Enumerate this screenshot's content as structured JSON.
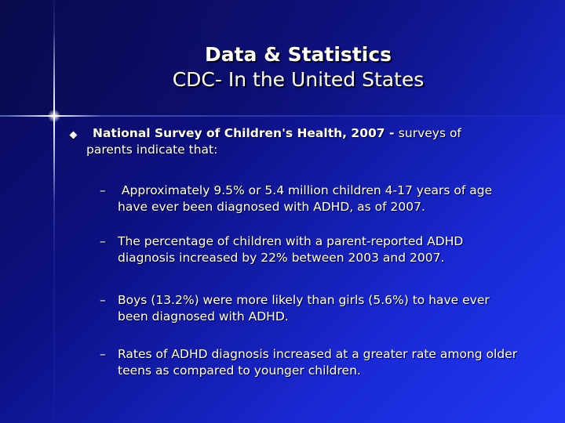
{
  "slide": {
    "title_line1": "Data & Statistics",
    "title_line2": "CDC- In the United States",
    "main_bullet": {
      "bold_text": "National Survey of Children's Health, 2007 - ",
      "text_line1": "surveys of",
      "text_line2": "parents indicate that:",
      "icon": "diamond-bullet-icon"
    },
    "sub_bullets": [
      {
        "dash": "–",
        "line1": " Approximately 9.5% or 5.4 million children 4-17 years of age",
        "line2": "have ever been diagnosed with ADHD, as of 2007."
      },
      {
        "dash": "–",
        "line1": "The percentage of children with a parent-reported ADHD",
        "line2": "diagnosis increased by 22% between 2003 and 2007."
      },
      {
        "dash": "–",
        "line1": "Boys (13.2%) were more likely than girls (5.6%) to have ever",
        "line2": "been diagnosed with ADHD."
      },
      {
        "dash": "–",
        "line1": "Rates of ADHD diagnosis increased at a greater rate among older",
        "line2": "teens as compared to younger children."
      }
    ],
    "colors": {
      "background_dark": "#0a0a55",
      "background_light": "#2238f2",
      "text": "#ffffff"
    }
  }
}
